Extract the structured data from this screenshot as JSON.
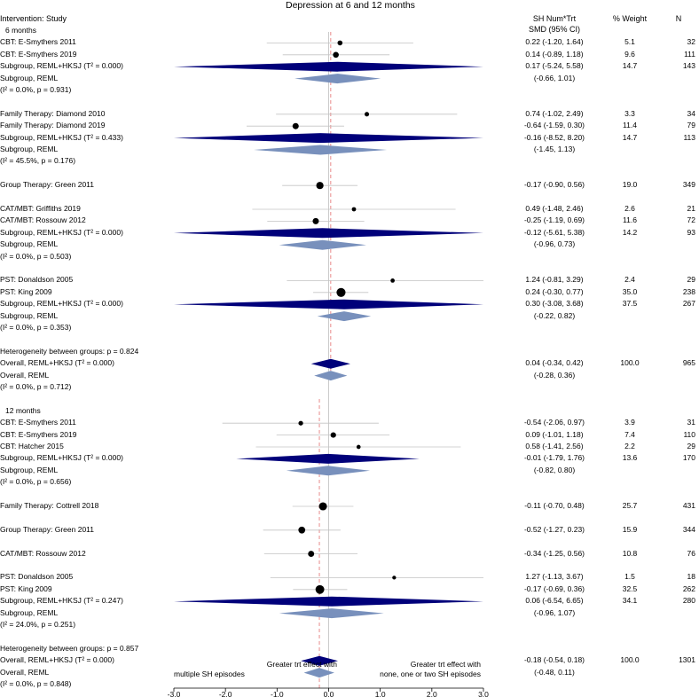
{
  "chart_data": {
    "type": "forest",
    "title": "Depression at 6 and 12 months",
    "columns": {
      "left_header": "Intervention: Study",
      "effect_header_line1": "SH Num*Trt",
      "effect_header_line2": "SMD (95% CI)",
      "weight_header": "% Weight",
      "n_header": "N"
    },
    "xaxis": {
      "min": -3,
      "max": 3,
      "ticks": [
        "-3.0",
        "-2.0",
        "-1.0",
        "0.0",
        "1.0",
        "2.0",
        "3.0"
      ],
      "tick_values": [
        -3,
        -2,
        -1,
        0,
        1,
        2,
        3
      ]
    },
    "favours_left": [
      "Greater trt effect with",
      "multiple SH episodes"
    ],
    "favours_right": [
      "Greater trt effect with",
      "none, one or two SH episodes"
    ],
    "overall_lines": [
      0.04,
      -0.18
    ],
    "rows": [
      {
        "label": "6 months",
        "kind": "heading"
      },
      {
        "label": "CBT: E-Smythers 2011",
        "kind": "study",
        "est": 0.22,
        "lo": -1.2,
        "hi": 1.64,
        "ci": "0.22 (-1.20, 1.64)",
        "weight": "5.1",
        "n": "32",
        "w": 5.1
      },
      {
        "label": "CBT: E-Smythers 2019",
        "kind": "study",
        "est": 0.14,
        "lo": -0.89,
        "hi": 1.18,
        "ci": "0.14 (-0.89, 1.18)",
        "weight": "9.6",
        "n": "111",
        "w": 9.6
      },
      {
        "label": "Subgroup, REML+HKSJ (T² = 0.000)",
        "kind": "summary_dark",
        "est": 0.17,
        "lo": -5.24,
        "hi": 5.58,
        "ci": "0.17 (-5.24, 5.58)",
        "weight": "14.7",
        "n": "143"
      },
      {
        "label": "Subgroup, REML",
        "kind": "summary_light",
        "est": 0.17,
        "lo": -0.66,
        "hi": 1.01,
        "ci": "(-0.66, 1.01)",
        "weight": "",
        "n": ""
      },
      {
        "label": "(I² = 0.0%, p = 0.931)",
        "kind": "text"
      },
      {
        "label": "",
        "kind": "blank"
      },
      {
        "label": "Family Therapy: Diamond 2010",
        "kind": "study",
        "est": 0.74,
        "lo": -1.02,
        "hi": 2.49,
        "ci": "0.74 (-1.02, 2.49)",
        "weight": "3.3",
        "n": "34",
        "w": 3.3
      },
      {
        "label": "Family Therapy: Diamond 2019",
        "kind": "study",
        "est": -0.64,
        "lo": -1.59,
        "hi": 0.3,
        "ci": "-0.64 (-1.59, 0.30)",
        "weight": "11.4",
        "n": "79",
        "w": 11.4
      },
      {
        "label": "Subgroup, REML+HKSJ (T² = 0.433)",
        "kind": "summary_dark",
        "est": -0.16,
        "lo": -8.52,
        "hi": 8.2,
        "ci": "-0.16 (-8.52, 8.20)",
        "weight": "14.7",
        "n": "113"
      },
      {
        "label": "Subgroup, REML",
        "kind": "summary_light",
        "est": -0.16,
        "lo": -1.45,
        "hi": 1.13,
        "ci": "(-1.45, 1.13)",
        "weight": "",
        "n": ""
      },
      {
        "label": "(I² = 45.5%, p = 0.176)",
        "kind": "text"
      },
      {
        "label": "",
        "kind": "blank"
      },
      {
        "label": "Group Therapy: Green 2011",
        "kind": "study",
        "est": -0.17,
        "lo": -0.9,
        "hi": 0.56,
        "ci": "-0.17 (-0.90, 0.56)",
        "weight": "19.0",
        "n": "349",
        "w": 19.0
      },
      {
        "label": "",
        "kind": "blank"
      },
      {
        "label": "CAT/MBT: Griffiths 2019",
        "kind": "study",
        "est": 0.49,
        "lo": -1.48,
        "hi": 2.46,
        "ci": "0.49 (-1.48, 2.46)",
        "weight": "2.6",
        "n": "21",
        "w": 2.6
      },
      {
        "label": "CAT/MBT: Rossouw 2012",
        "kind": "study",
        "est": -0.25,
        "lo": -1.19,
        "hi": 0.69,
        "ci": "-0.25 (-1.19, 0.69)",
        "weight": "11.6",
        "n": "72",
        "w": 11.6
      },
      {
        "label": "Subgroup, REML+HKSJ (T² = 0.000)",
        "kind": "summary_dark",
        "est": -0.12,
        "lo": -5.61,
        "hi": 5.38,
        "ci": "-0.12 (-5.61, 5.38)",
        "weight": "14.2",
        "n": "93"
      },
      {
        "label": "Subgroup, REML",
        "kind": "summary_light",
        "est": -0.12,
        "lo": -0.96,
        "hi": 0.73,
        "ci": "(-0.96, 0.73)",
        "weight": "",
        "n": ""
      },
      {
        "label": "(I² = 0.0%, p = 0.503)",
        "kind": "text"
      },
      {
        "label": "",
        "kind": "blank"
      },
      {
        "label": "PST: Donaldson 2005",
        "kind": "study",
        "est": 1.24,
        "lo": -0.81,
        "hi": 3.29,
        "ci": "1.24 (-0.81, 3.29)",
        "weight": "2.4",
        "n": "29",
        "w": 2.4
      },
      {
        "label": "PST: King 2009",
        "kind": "study",
        "est": 0.24,
        "lo": -0.3,
        "hi": 0.77,
        "ci": "0.24 (-0.30, 0.77)",
        "weight": "35.0",
        "n": "238",
        "w": 35.0
      },
      {
        "label": "Subgroup, REML+HKSJ (T² = 0.000)",
        "kind": "summary_dark",
        "est": 0.3,
        "lo": -3.08,
        "hi": 3.68,
        "ci": "0.30 (-3.08, 3.68)",
        "weight": "37.5",
        "n": "267"
      },
      {
        "label": "Subgroup, REML",
        "kind": "summary_light",
        "est": 0.3,
        "lo": -0.22,
        "hi": 0.82,
        "ci": "(-0.22, 0.82)",
        "weight": "",
        "n": ""
      },
      {
        "label": "(I² = 0.0%, p = 0.353)",
        "kind": "text"
      },
      {
        "label": "",
        "kind": "blank"
      },
      {
        "label": "Heterogeneity between groups: p = 0.824",
        "kind": "text"
      },
      {
        "label": "Overall, REML+HKSJ (T² = 0.000)",
        "kind": "summary_dark",
        "est": 0.04,
        "lo": -0.34,
        "hi": 0.42,
        "ci": "0.04 (-0.34, 0.42)",
        "weight": "100.0",
        "n": "965"
      },
      {
        "label": "Overall, REML",
        "kind": "summary_light",
        "est": 0.04,
        "lo": -0.28,
        "hi": 0.36,
        "ci": "(-0.28, 0.36)",
        "weight": "",
        "n": ""
      },
      {
        "label": "(I² = 0.0%, p = 0.712)",
        "kind": "text"
      },
      {
        "label": "",
        "kind": "blank"
      },
      {
        "label": "12 months",
        "kind": "heading"
      },
      {
        "label": "CBT: E-Smythers 2011",
        "kind": "study",
        "est": -0.54,
        "lo": -2.06,
        "hi": 0.97,
        "ci": "-0.54 (-2.06, 0.97)",
        "weight": "3.9",
        "n": "31",
        "w": 3.9
      },
      {
        "label": "CBT: E-Smythers 2019",
        "kind": "study",
        "est": 0.09,
        "lo": -1.01,
        "hi": 1.18,
        "ci": "0.09 (-1.01, 1.18)",
        "weight": "7.4",
        "n": "110",
        "w": 7.4
      },
      {
        "label": "CBT: Hatcher 2015",
        "kind": "study",
        "est": 0.58,
        "lo": -1.41,
        "hi": 2.56,
        "ci": "0.58 (-1.41, 2.56)",
        "weight": "2.2",
        "n": "29",
        "w": 2.2
      },
      {
        "label": "Subgroup, REML+HKSJ (T² = 0.000)",
        "kind": "summary_dark",
        "est": -0.01,
        "lo": -1.79,
        "hi": 1.76,
        "ci": "-0.01 (-1.79, 1.76)",
        "weight": "13.6",
        "n": "170"
      },
      {
        "label": "Subgroup, REML",
        "kind": "summary_light",
        "est": -0.01,
        "lo": -0.82,
        "hi": 0.8,
        "ci": "(-0.82, 0.80)",
        "weight": "",
        "n": ""
      },
      {
        "label": "(I² = 0.0%, p = 0.656)",
        "kind": "text"
      },
      {
        "label": "",
        "kind": "blank"
      },
      {
        "label": "Family Therapy: Cottrell 2018",
        "kind": "study",
        "est": -0.11,
        "lo": -0.7,
        "hi": 0.48,
        "ci": "-0.11 (-0.70, 0.48)",
        "weight": "25.7",
        "n": "431",
        "w": 25.7
      },
      {
        "label": "",
        "kind": "blank"
      },
      {
        "label": "Group Therapy: Green 2011",
        "kind": "study",
        "est": -0.52,
        "lo": -1.27,
        "hi": 0.23,
        "ci": "-0.52 (-1.27, 0.23)",
        "weight": "15.9",
        "n": "344",
        "w": 15.9
      },
      {
        "label": "",
        "kind": "blank"
      },
      {
        "label": "CAT/MBT: Rossouw 2012",
        "kind": "study",
        "est": -0.34,
        "lo": -1.25,
        "hi": 0.56,
        "ci": "-0.34 (-1.25, 0.56)",
        "weight": "10.8",
        "n": "76",
        "w": 10.8
      },
      {
        "label": "",
        "kind": "blank"
      },
      {
        "label": "PST: Donaldson 2005",
        "kind": "study",
        "est": 1.27,
        "lo": -1.13,
        "hi": 3.67,
        "ci": "1.27 (-1.13, 3.67)",
        "weight": "1.5",
        "n": "18",
        "w": 1.5
      },
      {
        "label": "PST: King 2009",
        "kind": "study",
        "est": -0.17,
        "lo": -0.69,
        "hi": 0.36,
        "ci": "-0.17 (-0.69, 0.36)",
        "weight": "32.5",
        "n": "262",
        "w": 32.5
      },
      {
        "label": "Subgroup, REML+HKSJ (T² = 0.247)",
        "kind": "summary_dark",
        "est": 0.06,
        "lo": -6.54,
        "hi": 6.65,
        "ci": "0.06 (-6.54, 6.65)",
        "weight": "34.1",
        "n": "280"
      },
      {
        "label": "Subgroup, REML",
        "kind": "summary_light",
        "est": 0.06,
        "lo": -0.96,
        "hi": 1.07,
        "ci": "(-0.96, 1.07)",
        "weight": "",
        "n": ""
      },
      {
        "label": "(I² = 24.0%, p = 0.251)",
        "kind": "text"
      },
      {
        "label": "",
        "kind": "blank"
      },
      {
        "label": "Heterogeneity between groups: p = 0.857",
        "kind": "text"
      },
      {
        "label": "Overall, REML+HKSJ (T² = 0.000)",
        "kind": "summary_dark",
        "est": -0.18,
        "lo": -0.54,
        "hi": 0.18,
        "ci": "-0.18 (-0.54, 0.18)",
        "weight": "100.0",
        "n": "1301"
      },
      {
        "label": "Overall, REML",
        "kind": "summary_light",
        "est": -0.18,
        "lo": -0.48,
        "hi": 0.11,
        "ci": "(-0.48, 0.11)",
        "weight": "",
        "n": ""
      },
      {
        "label": "(I² = 0.0%, p = 0.848)",
        "kind": "text"
      }
    ],
    "colors": {
      "dark": "#00007a",
      "light": "#7890bc",
      "ci_line": "#c4c4c4",
      "ref_line": "#bdbdbd",
      "overall_line": "#e88b8b",
      "point": "#000000"
    }
  }
}
